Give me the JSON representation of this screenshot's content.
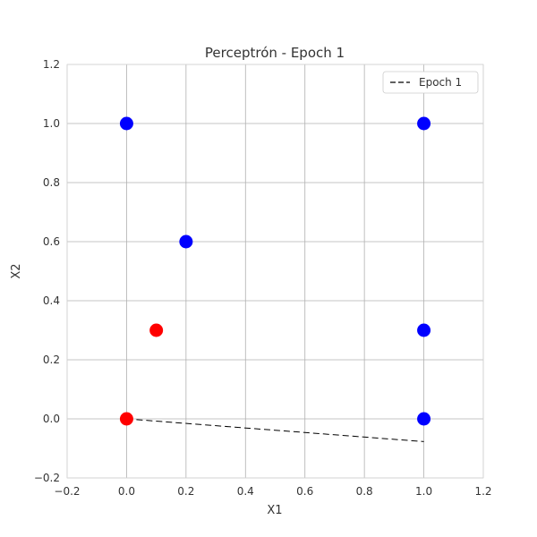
{
  "chart_data": {
    "type": "scatter",
    "title": "Perceptrón - Epoch 1",
    "xlabel": "X1",
    "ylabel": "X2",
    "xlim": [
      -0.2,
      1.2
    ],
    "ylim": [
      -0.2,
      1.2
    ],
    "xticks": [
      "−0.2",
      "0.0",
      "0.2",
      "0.4",
      "0.6",
      "0.8",
      "1.0",
      "1.2"
    ],
    "yticks": [
      "−0.2",
      "0.0",
      "0.2",
      "0.4",
      "0.6",
      "0.8",
      "1.0",
      "1.2"
    ],
    "grid": true,
    "legend_position": "top-right",
    "series": [
      {
        "color": "#0000ff",
        "points": [
          {
            "x": 0.0,
            "y": 1.0
          },
          {
            "x": 0.2,
            "y": 0.6
          },
          {
            "x": 1.0,
            "y": 1.0
          },
          {
            "x": 1.0,
            "y": 0.3
          },
          {
            "x": 1.0,
            "y": 0.0
          }
        ]
      },
      {
        "color": "#ff0000",
        "points": [
          {
            "x": 0.1,
            "y": 0.3
          },
          {
            "x": 0.0,
            "y": 0.0
          }
        ]
      }
    ],
    "lines": [
      {
        "name": "Epoch 1",
        "style": "dashed",
        "color": "#000000",
        "points": [
          {
            "x": 0.0,
            "y": 0.0
          },
          {
            "x": 1.0,
            "y": -0.077
          }
        ]
      }
    ]
  }
}
